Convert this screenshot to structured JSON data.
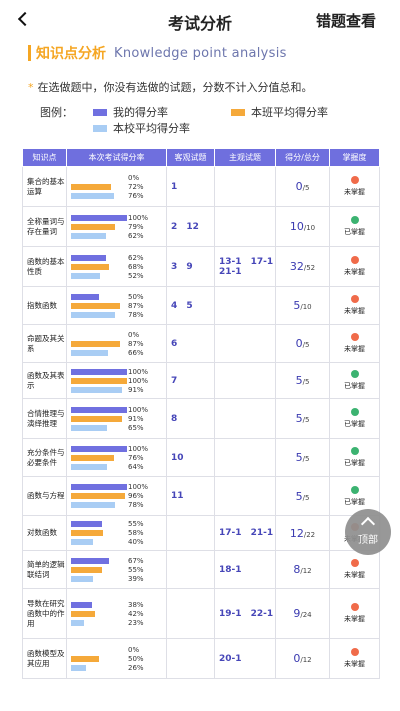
{
  "header": {
    "title": "考试分析",
    "right_button": "错题查看"
  },
  "section": {
    "title_cn": "知识点分析",
    "title_en": "Knowledge point analysis"
  },
  "note": "在选做题中，你没有选做的试题，分数不计入分值总和。",
  "legend": {
    "label": "图例：",
    "items": [
      {
        "label": "我的得分率",
        "color": "#7070e0"
      },
      {
        "label": "本班平均得分率",
        "color": "#f5a93a"
      },
      {
        "label": "本校平均得分率",
        "color": "#a9cdf4"
      }
    ]
  },
  "table": {
    "headers": [
      "知识点",
      "本次考试得分率",
      "客观试题",
      "主观试题",
      "得分/总分",
      "掌握度"
    ],
    "rows": [
      {
        "kp": "集合的基本运算",
        "mine": 0,
        "cls": 72,
        "sch": 76,
        "mine_t": "0%",
        "cls_t": "72%",
        "sch_t": "76%",
        "obj": "1",
        "subj": "",
        "score": "0",
        "total": "/5",
        "mastery": "未掌握"
      },
      {
        "kp": "全称量词与存在量词",
        "mine": 100,
        "cls": 79,
        "sch": 62,
        "mine_t": "100%",
        "cls_t": "79%",
        "sch_t": "62%",
        "obj": "2 12",
        "subj": "",
        "score": "10",
        "total": "/10",
        "mastery": "已掌握"
      },
      {
        "kp": "函数的基本性质",
        "mine": 62,
        "cls": 68,
        "sch": 52,
        "mine_t": "62%",
        "cls_t": "68%",
        "sch_t": "52%",
        "obj": "3 9",
        "subj": "13-1 17-1 21-1",
        "score": "32",
        "total": "/52",
        "mastery": "未掌握"
      },
      {
        "kp": "指数函数",
        "mine": 50,
        "cls": 87,
        "sch": 78,
        "mine_t": "50%",
        "cls_t": "87%",
        "sch_t": "78%",
        "obj": "4 5",
        "subj": "",
        "score": "5",
        "total": "/10",
        "mastery": "未掌握"
      },
      {
        "kp": "命题及其关系",
        "mine": 0,
        "cls": 87,
        "sch": 66,
        "mine_t": "0%",
        "cls_t": "87%",
        "sch_t": "66%",
        "obj": "6",
        "subj": "",
        "score": "0",
        "total": "/5",
        "mastery": "未掌握"
      },
      {
        "kp": "函数及其表示",
        "mine": 100,
        "cls": 100,
        "sch": 91,
        "mine_t": "100%",
        "cls_t": "100%",
        "sch_t": "91%",
        "obj": "7",
        "subj": "",
        "score": "5",
        "total": "/5",
        "mastery": "已掌握"
      },
      {
        "kp": "合情推理与演绎推理",
        "mine": 100,
        "cls": 91,
        "sch": 65,
        "mine_t": "100%",
        "cls_t": "91%",
        "sch_t": "65%",
        "obj": "8",
        "subj": "",
        "score": "5",
        "total": "/5",
        "mastery": "已掌握"
      },
      {
        "kp": "充分条件与必要条件",
        "mine": 100,
        "cls": 76,
        "sch": 64,
        "mine_t": "100%",
        "cls_t": "76%",
        "sch_t": "64%",
        "obj": "10",
        "subj": "",
        "score": "5",
        "total": "/5",
        "mastery": "已掌握"
      },
      {
        "kp": "函数与方程",
        "mine": 100,
        "cls": 96,
        "sch": 78,
        "mine_t": "100%",
        "cls_t": "96%",
        "sch_t": "78%",
        "obj": "11",
        "subj": "",
        "score": "5",
        "total": "/5",
        "mastery": "已掌握"
      },
      {
        "kp": "对数函数",
        "mine": 55,
        "cls": 58,
        "sch": 40,
        "mine_t": "55%",
        "cls_t": "58%",
        "sch_t": "40%",
        "obj": "",
        "subj": "17-1 21-1",
        "score": "12",
        "total": "/22",
        "mastery": "未掌握"
      },
      {
        "kp": "简单的逻辑联结词",
        "mine": 67,
        "cls": 55,
        "sch": 39,
        "mine_t": "67%",
        "cls_t": "55%",
        "sch_t": "39%",
        "obj": "",
        "subj": "18-1",
        "score": "8",
        "total": "/12",
        "mastery": "未掌握"
      },
      {
        "kp": "导数在研究函数中的作用",
        "mine": 38,
        "cls": 42,
        "sch": 23,
        "mine_t": "38%",
        "cls_t": "42%",
        "sch_t": "23%",
        "obj": "",
        "subj": "19-1 22-1",
        "score": "9",
        "total": "/24",
        "mastery": "未掌握"
      },
      {
        "kp": "函数模型及其应用",
        "mine": 0,
        "cls": 50,
        "sch": 26,
        "mine_t": "0%",
        "cls_t": "50%",
        "sch_t": "26%",
        "obj": "",
        "subj": "20-1",
        "score": "0",
        "total": "/12",
        "mastery": "未掌握"
      }
    ]
  },
  "mastery_colors": {
    "未掌握": "#f06b4a",
    "已掌握": "#3cb371"
  },
  "float_button": "顶部"
}
